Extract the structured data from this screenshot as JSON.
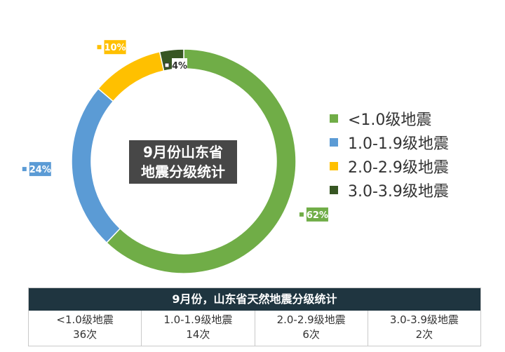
{
  "chart_data": {
    "type": "pie",
    "title": "9月份山东省地震分级统计",
    "title_lines": [
      "9月份山东省",
      "地震分级统计"
    ],
    "donut": true,
    "categories": [
      "<1.0级地震",
      "1.0-1.9级地震",
      "2.0-2.9级地震",
      "3.0-3.9级地震"
    ],
    "values": [
      36,
      14,
      6,
      2
    ],
    "percent_labels": [
      "62%",
      "24%",
      "10%",
      "4%"
    ],
    "colors": [
      "#70ad47",
      "#5b9bd5",
      "#ffc000",
      "#375623"
    ],
    "legend_position": "right"
  },
  "summary_table": {
    "title": "9月份，山东省天然地震分级统计",
    "cells": [
      {
        "label": "<1.0级地震",
        "count": "36次"
      },
      {
        "label": "1.0-1.9级地震",
        "count": "14次"
      },
      {
        "label": "2.0-2.9级地震",
        "count": "6次"
      },
      {
        "label": "3.0-3.9级地震",
        "count": "2次"
      }
    ]
  }
}
